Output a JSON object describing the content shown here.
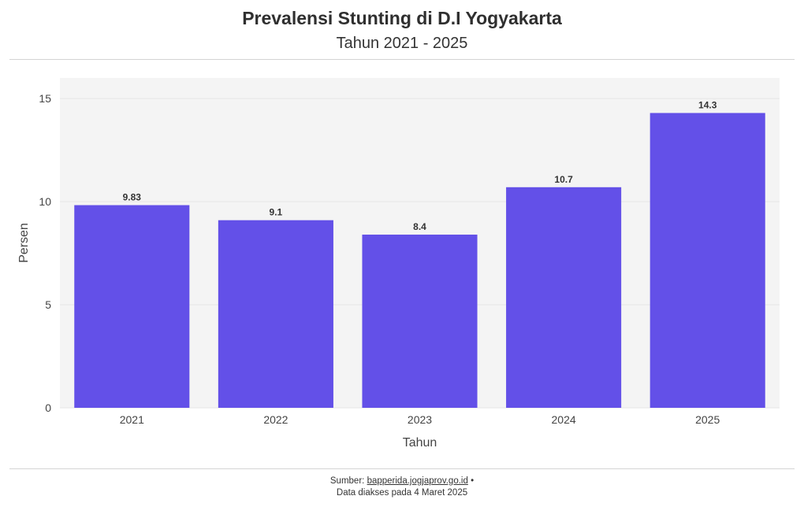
{
  "header": {
    "title": "Prevalensi Stunting di D.I Yogyakarta",
    "subtitle": "Tahun 2021 - 2025"
  },
  "footer": {
    "source_label": "Sumber:",
    "source_link": "bapperida.jogjaprov.go.id",
    "separator": "•",
    "access_note": "Data diakses pada 4 Maret 2025"
  },
  "colors": {
    "bar": "#6350e8",
    "plot_background": "#f4f4f4",
    "gridline": "#e6e6e6"
  },
  "chart_data": {
    "type": "bar",
    "title": "Prevalensi Stunting di D.I Yogyakarta",
    "subtitle": "Tahun 2021 - 2025",
    "categories": [
      "2021",
      "2022",
      "2023",
      "2024",
      "2025"
    ],
    "values": [
      9.83,
      9.1,
      8.4,
      10.7,
      14.3
    ],
    "data_labels": [
      "9.83",
      "9.1",
      "8.4",
      "10.7",
      "14.3"
    ],
    "xlabel": "Tahun",
    "ylabel": "Persen",
    "ylim": [
      0,
      16
    ],
    "yticks": [
      0,
      5,
      10,
      15
    ],
    "grid": true,
    "legend": "none"
  }
}
